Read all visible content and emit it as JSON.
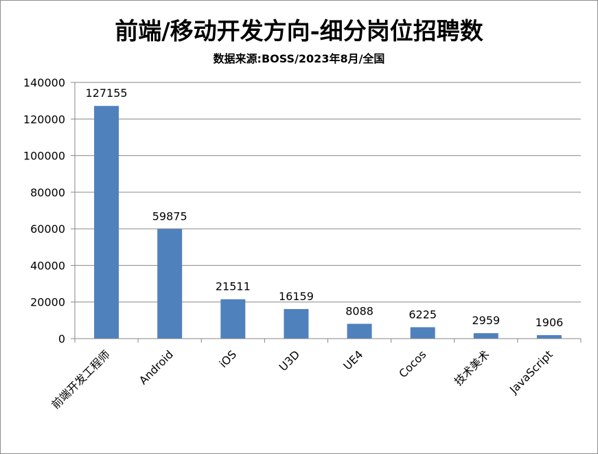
{
  "chart_data": {
    "type": "bar",
    "title": "前端/移动开发方向-细分岗位招聘数",
    "subtitle": "数据来源:BOSS/2023年8月/全国",
    "categories": [
      "前端开发工程师",
      "Android",
      "iOS",
      "U3D",
      "UE4",
      "Cocos",
      "技术美术",
      "JavaScript"
    ],
    "values": [
      127155,
      59875,
      21511,
      16159,
      8088,
      6225,
      2959,
      1906
    ],
    "data_labels": [
      "127155",
      "59875",
      "21511",
      "16159",
      "8088",
      "6225",
      "2959",
      "1906"
    ],
    "yticks": [
      0,
      20000,
      40000,
      60000,
      80000,
      100000,
      120000,
      140000
    ],
    "ytick_labels": [
      "0",
      "20000",
      "40000",
      "60000",
      "80000",
      "100000",
      "120000",
      "140000"
    ],
    "ylim": [
      0,
      140000
    ],
    "grid": true,
    "legend": "none",
    "bar_color": "#4f81bd",
    "grid_color": "#868686"
  }
}
